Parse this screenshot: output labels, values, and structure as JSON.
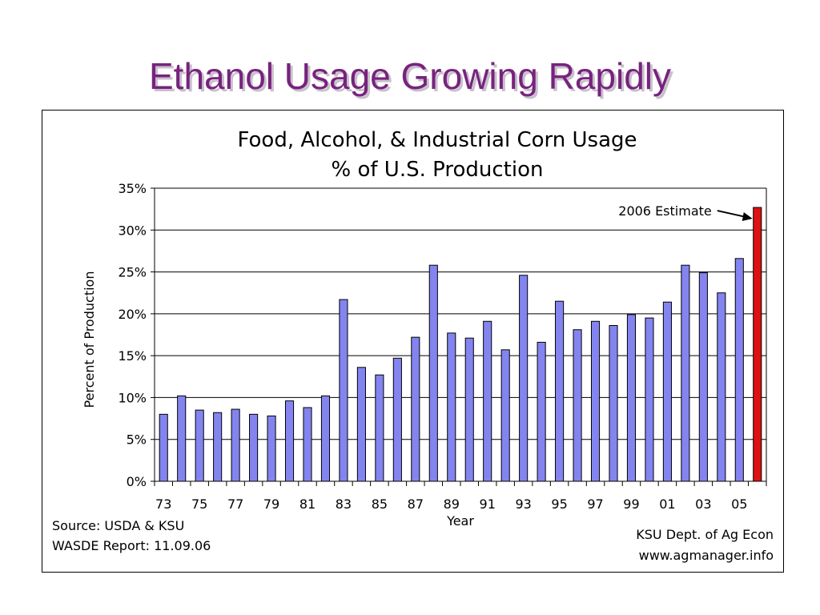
{
  "slide_title": "Ethanol Usage Growing Rapidly",
  "source": {
    "line1": "Source:  USDA & KSU",
    "line2": "WASDE Report: 11.09.06",
    "credit1": "KSU Dept. of Ag Econ",
    "credit2": "www.agmanager.info"
  },
  "colors": {
    "title": "#77237e",
    "bar": "#8484f0",
    "highlight": "#dd1111"
  },
  "chart_data": {
    "type": "bar",
    "title": "Food, Alcohol, & Industrial Corn Usage",
    "subtitle": "% of U.S. Production",
    "xlabel": "Year",
    "ylabel": "Percent of Production",
    "ylim": [
      0,
      35
    ],
    "yticks": [
      "0%",
      "5%",
      "10%",
      "15%",
      "20%",
      "25%",
      "30%",
      "35%"
    ],
    "grid": true,
    "categories": [
      "73",
      "74",
      "75",
      "76",
      "77",
      "78",
      "79",
      "80",
      "81",
      "82",
      "83",
      "84",
      "85",
      "86",
      "87",
      "88",
      "89",
      "90",
      "91",
      "92",
      "93",
      "94",
      "95",
      "96",
      "97",
      "98",
      "99",
      "00",
      "01",
      "02",
      "03",
      "04",
      "05",
      "06"
    ],
    "x_tick_labels": [
      "73",
      "75",
      "77",
      "79",
      "81",
      "83",
      "85",
      "87",
      "89",
      "91",
      "93",
      "95",
      "97",
      "99",
      "01",
      "03",
      "05"
    ],
    "values": [
      8.0,
      10.2,
      8.5,
      8.2,
      8.6,
      8.0,
      7.8,
      9.6,
      8.8,
      10.2,
      21.7,
      13.6,
      12.7,
      14.7,
      17.2,
      25.8,
      17.7,
      17.1,
      19.1,
      15.7,
      24.6,
      16.6,
      21.5,
      18.1,
      19.1,
      18.6,
      19.9,
      19.5,
      21.4,
      25.8,
      24.9,
      22.5,
      26.6,
      32.7
    ],
    "highlight_index": 33,
    "annotation": "2006 Estimate"
  }
}
